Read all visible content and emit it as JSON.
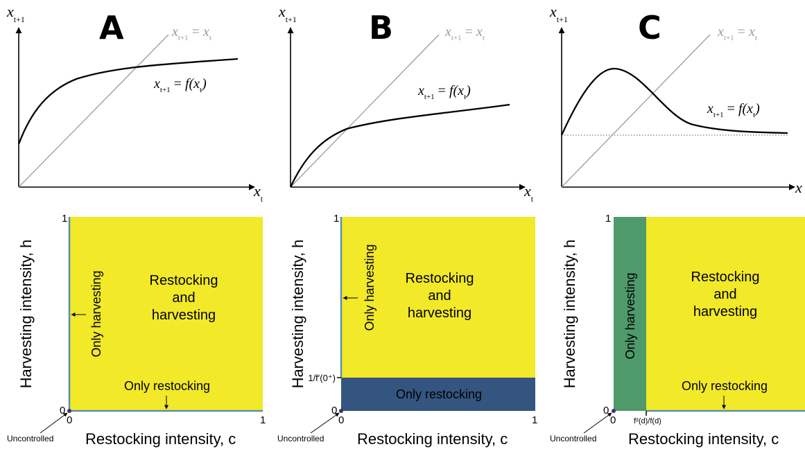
{
  "colors": {
    "yellow": "#f2e928",
    "blue": "#34557f",
    "green": "#4e9a6a",
    "axis": "#000000",
    "diag": "#9a9a9a",
    "edge": "#5a8fb0",
    "dot": "#4a2a7a"
  },
  "panels": [
    {
      "letter": "A",
      "top": {
        "y_axis_main": "x",
        "y_axis_sub": "t+1",
        "x_axis_main": "x",
        "x_axis_sub": "t",
        "diag_lhs": "x",
        "diag_lhs_sub": "t+1",
        "diag_eq": " = ",
        "diag_rhs": "x",
        "diag_rhs_sub": "t",
        "f_lhs": "x",
        "f_lhs_sub": "t+1",
        "f_eq": " = ",
        "f_fn": "f(x",
        "f_fn_sub": "t",
        "f_close": ")"
      },
      "bottom": {
        "y_axis_label": "Harvesting intensity, h",
        "x_axis_label": "Restocking intensity, c",
        "tick_y_top": "1",
        "tick_origin_y": "0",
        "tick_origin_x": "0",
        "tick_x_right": "1",
        "region_main_line1": "Restocking",
        "region_main_line2": "and",
        "region_main_line3": "harvesting",
        "only_harvesting": "Only harvesting",
        "only_restocking": "Only restocking",
        "uncontrolled": "Uncontrolled"
      }
    },
    {
      "letter": "B",
      "top": {
        "y_axis_main": "x",
        "y_axis_sub": "t+1",
        "x_axis_main": "x",
        "x_axis_sub": "t",
        "diag_lhs": "x",
        "diag_lhs_sub": "t+1",
        "diag_eq": " = ",
        "diag_rhs": "x",
        "diag_rhs_sub": "t",
        "f_lhs": "x",
        "f_lhs_sub": "t+1",
        "f_eq": " = ",
        "f_fn": "f(x",
        "f_fn_sub": "t",
        "f_close": ")"
      },
      "bottom": {
        "y_axis_label": "Harvesting intensity, h",
        "x_axis_label": "Restocking intensity, c",
        "tick_y_top": "1",
        "tick_origin_y": "0",
        "tick_origin_x": "0",
        "tick_x_right": "1",
        "tick_threshold": "1/f′(0⁺)",
        "region_main_line1": "Restocking",
        "region_main_line2": "and",
        "region_main_line3": "harvesting",
        "only_harvesting": "Only harvesting",
        "only_restocking": "Only restocking",
        "uncontrolled": "Uncontrolled"
      }
    },
    {
      "letter": "C",
      "top": {
        "y_axis_main": "x",
        "y_axis_sub": "t+1",
        "x_axis_main": "x",
        "x_axis_sub": "",
        "diag_lhs": "x",
        "diag_lhs_sub": "t+1",
        "diag_eq": " = ",
        "diag_rhs": "x",
        "diag_rhs_sub": "t",
        "f_lhs": "x",
        "f_lhs_sub": "t+1",
        "f_eq": " = ",
        "f_fn": "f(x",
        "f_fn_sub": "t",
        "f_close": ")"
      },
      "bottom": {
        "y_axis_label": "Harvesting intensity, h",
        "x_axis_label": "Restocking intensity, c",
        "tick_y_top": "1",
        "tick_origin_y": "0",
        "tick_origin_x": "0",
        "tick_threshold": "f²(d)/f(d)",
        "region_main_line1": "Restocking",
        "region_main_line2": "and",
        "region_main_line3": "harvesting",
        "only_harvesting": "Only harvesting",
        "only_restocking": "Only restocking",
        "uncontrolled": "Uncontrolled"
      }
    }
  ]
}
